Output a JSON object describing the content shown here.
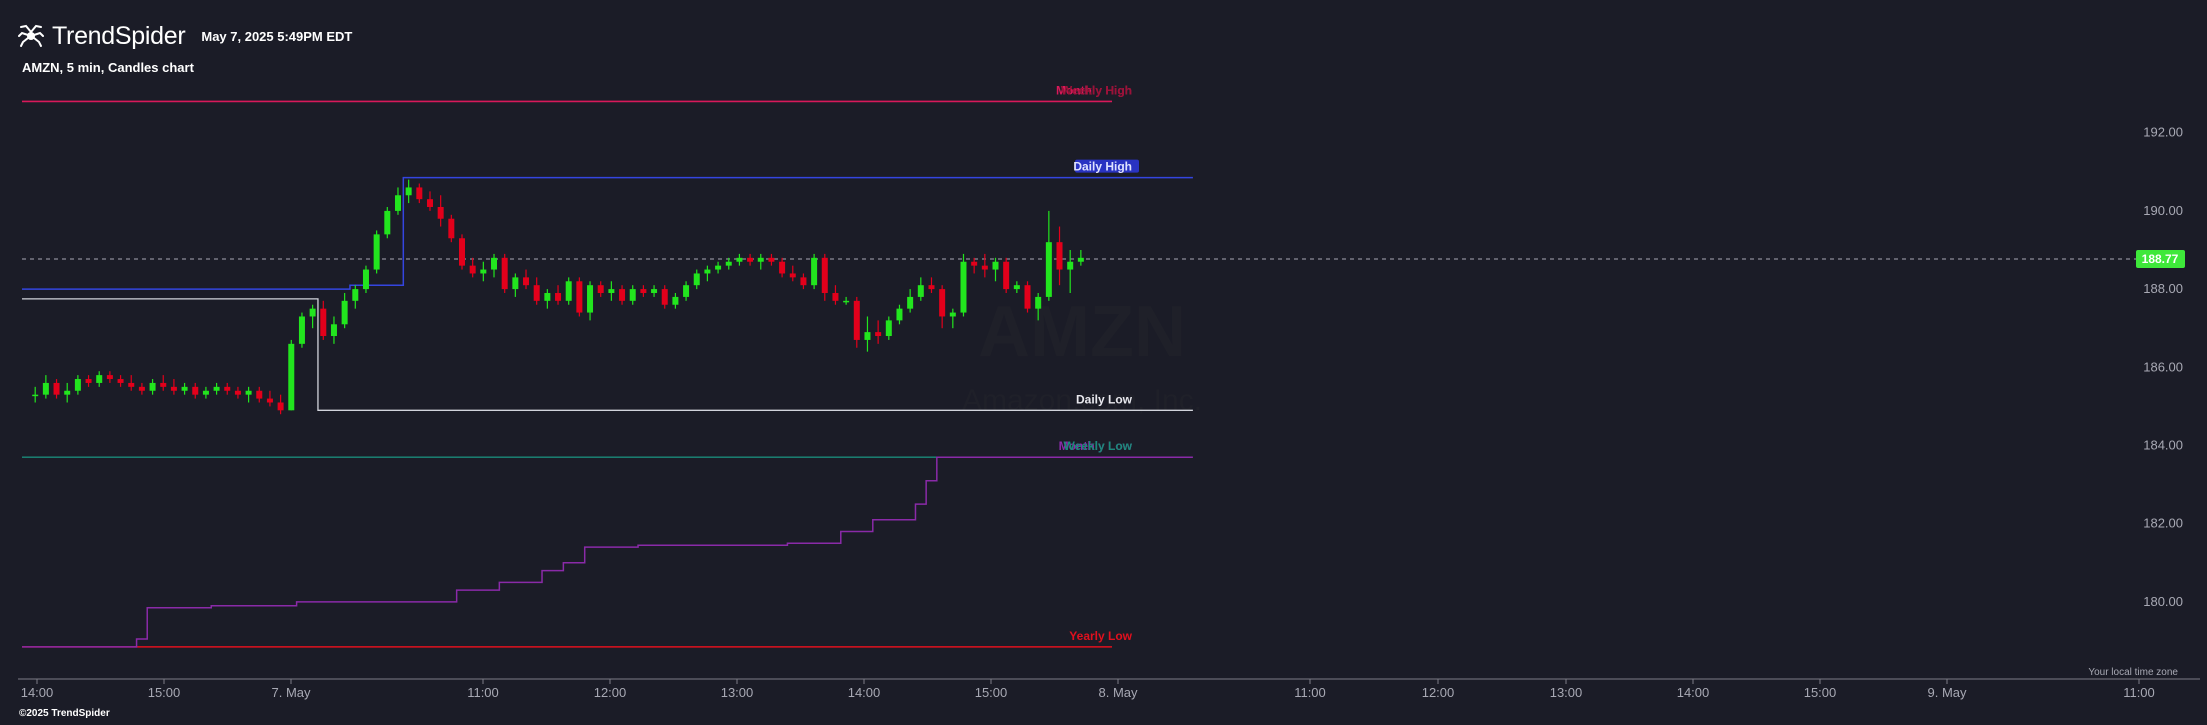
{
  "header": {
    "brand": "TrendSpider",
    "timestamp": "May 7, 2025 5:49PM EDT"
  },
  "chart_title": "AMZN, 5 min, Candles chart",
  "watermark": {
    "ticker": "AMZN",
    "subtitle": "Amazon.com, Inc."
  },
  "footer": {
    "copyright": "©2025 TrendSpider",
    "timezone": "Your local time zone"
  },
  "colors": {
    "background": "#1b1c27",
    "up": "#22e51e",
    "down": "#e3001b",
    "price_badge": "#3ee83a",
    "monthly_high": "#d8195a",
    "daily_high": "#3445e0",
    "daily_low": "#d2d4dc",
    "monthly_low": "#8a2aa8",
    "weekly": "#1b8a7a",
    "yearly_low": "#e0101e"
  },
  "chart_data": {
    "type": "candlestick",
    "symbol": "AMZN",
    "interval": "5 min",
    "ylim": [
      178.5,
      193.8
    ],
    "y_ticks": [
      "192.00",
      "190.00",
      "188.00",
      "186.00",
      "184.00",
      "182.00",
      "180.00"
    ],
    "x_ticks": [
      "14:00",
      "15:00",
      "7. May",
      "11:00",
      "12:00",
      "13:00",
      "14:00",
      "15:00",
      "8. May",
      "11:00",
      "12:00",
      "13:00",
      "14:00",
      "15:00",
      "9. May",
      "11:00"
    ],
    "last_price": "188.77",
    "levels": [
      {
        "name": "Monthly High",
        "value": 192.8
      },
      {
        "name": "Weekly High",
        "value": 192.8
      },
      {
        "name": "Daily High",
        "value": 190.85
      },
      {
        "name": "Daily Low",
        "value": 184.9
      },
      {
        "name": "Monthly Low",
        "value": 183.7
      },
      {
        "name": "Weekly Low",
        "value": 183.7
      },
      {
        "name": "Yearly Low",
        "value": 178.85
      }
    ],
    "candles": [
      [
        185.3,
        185.5,
        185.1,
        185.3
      ],
      [
        185.3,
        185.8,
        185.2,
        185.6
      ],
      [
        185.6,
        185.7,
        185.2,
        185.3
      ],
      [
        185.3,
        185.6,
        185.1,
        185.4
      ],
      [
        185.4,
        185.8,
        185.3,
        185.7
      ],
      [
        185.7,
        185.8,
        185.5,
        185.6
      ],
      [
        185.6,
        185.9,
        185.5,
        185.8
      ],
      [
        185.8,
        185.9,
        185.6,
        185.7
      ],
      [
        185.7,
        185.8,
        185.5,
        185.6
      ],
      [
        185.6,
        185.8,
        185.4,
        185.5
      ],
      [
        185.5,
        185.6,
        185.3,
        185.4
      ],
      [
        185.4,
        185.7,
        185.3,
        185.6
      ],
      [
        185.6,
        185.8,
        185.4,
        185.5
      ],
      [
        185.5,
        185.7,
        185.3,
        185.4
      ],
      [
        185.4,
        185.6,
        185.3,
        185.5
      ],
      [
        185.5,
        185.6,
        185.2,
        185.3
      ],
      [
        185.3,
        185.5,
        185.2,
        185.4
      ],
      [
        185.4,
        185.6,
        185.3,
        185.5
      ],
      [
        185.5,
        185.6,
        185.3,
        185.4
      ],
      [
        185.4,
        185.5,
        185.2,
        185.3
      ],
      [
        185.3,
        185.5,
        185.1,
        185.4
      ],
      [
        185.4,
        185.5,
        185.1,
        185.2
      ],
      [
        185.2,
        185.4,
        185.0,
        185.1
      ],
      [
        185.1,
        185.3,
        184.8,
        184.9
      ],
      [
        184.9,
        186.7,
        184.9,
        186.6
      ],
      [
        186.6,
        187.4,
        186.5,
        187.3
      ],
      [
        187.3,
        187.6,
        187.0,
        187.5
      ],
      [
        187.5,
        187.7,
        186.7,
        186.8
      ],
      [
        186.8,
        187.3,
        186.6,
        187.1
      ],
      [
        187.1,
        187.9,
        187.0,
        187.7
      ],
      [
        187.7,
        188.1,
        187.5,
        188.0
      ],
      [
        188.0,
        188.6,
        187.9,
        188.5
      ],
      [
        188.5,
        189.5,
        188.4,
        189.4
      ],
      [
        189.4,
        190.1,
        189.3,
        190.0
      ],
      [
        190.0,
        190.6,
        189.9,
        190.4
      ],
      [
        190.4,
        190.8,
        190.2,
        190.6
      ],
      [
        190.6,
        190.7,
        190.2,
        190.3
      ],
      [
        190.3,
        190.5,
        190.0,
        190.1
      ],
      [
        190.1,
        190.4,
        189.6,
        189.8
      ],
      [
        189.8,
        189.9,
        189.2,
        189.3
      ],
      [
        189.3,
        189.4,
        188.5,
        188.6
      ],
      [
        188.6,
        188.8,
        188.3,
        188.4
      ],
      [
        188.4,
        188.7,
        188.2,
        188.5
      ],
      [
        188.5,
        188.9,
        188.3,
        188.8
      ],
      [
        188.8,
        188.9,
        187.9,
        188.0
      ],
      [
        188.0,
        188.4,
        187.8,
        188.3
      ],
      [
        188.3,
        188.5,
        188.0,
        188.1
      ],
      [
        188.1,
        188.3,
        187.6,
        187.7
      ],
      [
        187.7,
        188.0,
        187.5,
        187.9
      ],
      [
        187.9,
        188.1,
        187.6,
        187.7
      ],
      [
        187.7,
        188.3,
        187.6,
        188.2
      ],
      [
        188.2,
        188.3,
        187.3,
        187.4
      ],
      [
        187.4,
        188.2,
        187.2,
        188.1
      ],
      [
        188.1,
        188.2,
        187.8,
        187.9
      ],
      [
        187.9,
        188.2,
        187.7,
        188.0
      ],
      [
        188.0,
        188.1,
        187.6,
        187.7
      ],
      [
        187.7,
        188.1,
        187.6,
        188.0
      ],
      [
        188.0,
        188.1,
        187.8,
        187.9
      ],
      [
        187.9,
        188.1,
        187.8,
        188.0
      ],
      [
        188.0,
        188.1,
        187.5,
        187.6
      ],
      [
        187.6,
        187.9,
        187.5,
        187.8
      ],
      [
        187.8,
        188.2,
        187.7,
        188.1
      ],
      [
        188.1,
        188.5,
        188.0,
        188.4
      ],
      [
        188.4,
        188.6,
        188.2,
        188.5
      ],
      [
        188.5,
        188.7,
        188.4,
        188.6
      ],
      [
        188.6,
        188.8,
        188.5,
        188.7
      ],
      [
        188.7,
        188.9,
        188.6,
        188.8
      ],
      [
        188.8,
        188.9,
        188.6,
        188.7
      ],
      [
        188.7,
        188.9,
        188.5,
        188.8
      ],
      [
        188.8,
        188.9,
        188.6,
        188.7
      ],
      [
        188.7,
        188.8,
        188.3,
        188.4
      ],
      [
        188.4,
        188.6,
        188.2,
        188.3
      ],
      [
        188.3,
        188.4,
        188.0,
        188.1
      ],
      [
        188.1,
        188.9,
        188.0,
        188.8
      ],
      [
        188.8,
        188.9,
        187.7,
        187.9
      ],
      [
        187.9,
        188.1,
        187.6,
        187.7
      ],
      [
        187.7,
        187.8,
        187.6,
        187.7
      ],
      [
        187.7,
        187.8,
        186.5,
        186.7
      ],
      [
        186.7,
        187.3,
        186.4,
        186.9
      ],
      [
        186.9,
        187.2,
        186.6,
        186.8
      ],
      [
        186.8,
        187.3,
        186.7,
        187.2
      ],
      [
        187.2,
        187.6,
        187.1,
        187.5
      ],
      [
        187.5,
        188.0,
        187.4,
        187.8
      ],
      [
        187.8,
        188.3,
        187.7,
        188.1
      ],
      [
        188.1,
        188.3,
        187.9,
        188.0
      ],
      [
        188.0,
        188.1,
        187.0,
        187.3
      ],
      [
        187.3,
        187.5,
        187.0,
        187.4
      ],
      [
        187.4,
        188.9,
        187.3,
        188.7
      ],
      [
        188.7,
        188.8,
        188.4,
        188.6
      ],
      [
        188.6,
        188.9,
        188.3,
        188.5
      ],
      [
        188.5,
        188.8,
        188.2,
        188.7
      ],
      [
        188.7,
        188.8,
        187.9,
        188.0
      ],
      [
        188.0,
        188.2,
        187.9,
        188.1
      ],
      [
        188.1,
        188.2,
        187.4,
        187.5
      ],
      [
        187.5,
        187.9,
        187.2,
        187.8
      ],
      [
        187.8,
        190.0,
        187.7,
        189.2
      ],
      [
        189.2,
        189.6,
        188.1,
        188.5
      ],
      [
        188.5,
        189.0,
        187.9,
        188.7
      ],
      [
        188.7,
        189.0,
        188.6,
        188.8
      ]
    ],
    "steps": {
      "monthly_low": [
        [
          0,
          178.85
        ],
        [
          10,
          179.05
        ],
        [
          11,
          179.85
        ],
        [
          17,
          179.9
        ],
        [
          25,
          180.0
        ],
        [
          40,
          180.3
        ],
        [
          44,
          180.5
        ],
        [
          48,
          180.8
        ],
        [
          50,
          181.0
        ],
        [
          52,
          181.4
        ],
        [
          57,
          181.45
        ],
        [
          71,
          181.5
        ],
        [
          76,
          181.8
        ],
        [
          79,
          182.1
        ],
        [
          83,
          182.5
        ],
        [
          84,
          183.1
        ],
        [
          85,
          183.7
        ],
        [
          109,
          183.7
        ]
      ],
      "daily_low": [
        [
          0,
          187.75
        ],
        [
          27,
          184.9
        ],
        [
          109,
          184.9
        ]
      ],
      "daily_high": [
        [
          0,
          188.0
        ],
        [
          30,
          188.1
        ],
        [
          35,
          190.85
        ],
        [
          109,
          190.85
        ]
      ],
      "weekly_low": [
        [
          0,
          183.7
        ],
        [
          109,
          183.7
        ]
      ]
    }
  }
}
